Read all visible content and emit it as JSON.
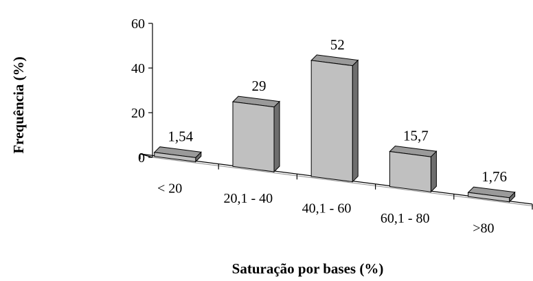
{
  "chart_data": {
    "type": "bar",
    "style": "3d",
    "categories": [
      "< 20",
      "20,1 - 40",
      "40,1 - 60",
      "60,1 - 80",
      ">80"
    ],
    "values": [
      1.54,
      29,
      52,
      15.7,
      1.76
    ],
    "value_labels": [
      "1,54",
      "29",
      "52",
      "15,7",
      "1,76"
    ],
    "xlabel": "Saturação por bases (%)",
    "ylabel": "Frequência (%)",
    "ylim": [
      0,
      60
    ],
    "yticks": [
      0,
      20,
      40,
      60
    ],
    "grid": false,
    "legend": "none",
    "colors": {
      "bar_front": "#c0c0c0",
      "bar_side": "#6e6e6e",
      "bar_top": "#9a9a9a",
      "floor_line": "#9a9a9a",
      "axis": "#000000"
    }
  }
}
